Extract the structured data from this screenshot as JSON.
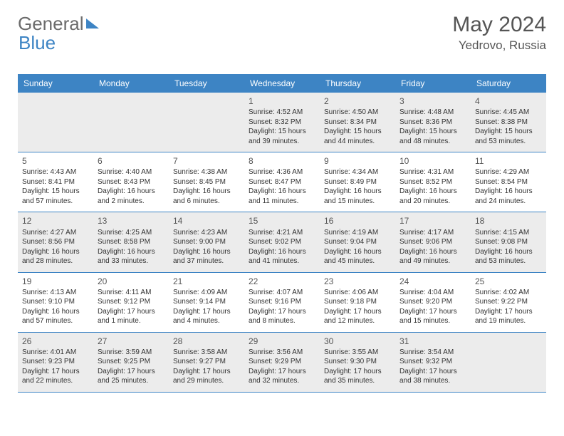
{
  "logo": {
    "text1": "General",
    "text2": "Blue"
  },
  "title": "May 2024",
  "location": "Yedrovo, Russia",
  "day_names": [
    "Sunday",
    "Monday",
    "Tuesday",
    "Wednesday",
    "Thursday",
    "Friday",
    "Saturday"
  ],
  "colors": {
    "header_bg": "#3d84c4",
    "shade": "#ececec",
    "text": "#333333",
    "title": "#555555"
  },
  "fonts": {
    "title_size": 30,
    "location_size": 17,
    "dayheader_size": 12,
    "cell_size": 10
  },
  "weeks": [
    [
      {
        "n": "",
        "sunrise": "",
        "sunset": "",
        "daylight": ""
      },
      {
        "n": "",
        "sunrise": "",
        "sunset": "",
        "daylight": ""
      },
      {
        "n": "",
        "sunrise": "",
        "sunset": "",
        "daylight": ""
      },
      {
        "n": "1",
        "sunrise": "Sunrise: 4:52 AM",
        "sunset": "Sunset: 8:32 PM",
        "daylight": "Daylight: 15 hours and 39 minutes."
      },
      {
        "n": "2",
        "sunrise": "Sunrise: 4:50 AM",
        "sunset": "Sunset: 8:34 PM",
        "daylight": "Daylight: 15 hours and 44 minutes."
      },
      {
        "n": "3",
        "sunrise": "Sunrise: 4:48 AM",
        "sunset": "Sunset: 8:36 PM",
        "daylight": "Daylight: 15 hours and 48 minutes."
      },
      {
        "n": "4",
        "sunrise": "Sunrise: 4:45 AM",
        "sunset": "Sunset: 8:38 PM",
        "daylight": "Daylight: 15 hours and 53 minutes."
      }
    ],
    [
      {
        "n": "5",
        "sunrise": "Sunrise: 4:43 AM",
        "sunset": "Sunset: 8:41 PM",
        "daylight": "Daylight: 15 hours and 57 minutes."
      },
      {
        "n": "6",
        "sunrise": "Sunrise: 4:40 AM",
        "sunset": "Sunset: 8:43 PM",
        "daylight": "Daylight: 16 hours and 2 minutes."
      },
      {
        "n": "7",
        "sunrise": "Sunrise: 4:38 AM",
        "sunset": "Sunset: 8:45 PM",
        "daylight": "Daylight: 16 hours and 6 minutes."
      },
      {
        "n": "8",
        "sunrise": "Sunrise: 4:36 AM",
        "sunset": "Sunset: 8:47 PM",
        "daylight": "Daylight: 16 hours and 11 minutes."
      },
      {
        "n": "9",
        "sunrise": "Sunrise: 4:34 AM",
        "sunset": "Sunset: 8:49 PM",
        "daylight": "Daylight: 16 hours and 15 minutes."
      },
      {
        "n": "10",
        "sunrise": "Sunrise: 4:31 AM",
        "sunset": "Sunset: 8:52 PM",
        "daylight": "Daylight: 16 hours and 20 minutes."
      },
      {
        "n": "11",
        "sunrise": "Sunrise: 4:29 AM",
        "sunset": "Sunset: 8:54 PM",
        "daylight": "Daylight: 16 hours and 24 minutes."
      }
    ],
    [
      {
        "n": "12",
        "sunrise": "Sunrise: 4:27 AM",
        "sunset": "Sunset: 8:56 PM",
        "daylight": "Daylight: 16 hours and 28 minutes."
      },
      {
        "n": "13",
        "sunrise": "Sunrise: 4:25 AM",
        "sunset": "Sunset: 8:58 PM",
        "daylight": "Daylight: 16 hours and 33 minutes."
      },
      {
        "n": "14",
        "sunrise": "Sunrise: 4:23 AM",
        "sunset": "Sunset: 9:00 PM",
        "daylight": "Daylight: 16 hours and 37 minutes."
      },
      {
        "n": "15",
        "sunrise": "Sunrise: 4:21 AM",
        "sunset": "Sunset: 9:02 PM",
        "daylight": "Daylight: 16 hours and 41 minutes."
      },
      {
        "n": "16",
        "sunrise": "Sunrise: 4:19 AM",
        "sunset": "Sunset: 9:04 PM",
        "daylight": "Daylight: 16 hours and 45 minutes."
      },
      {
        "n": "17",
        "sunrise": "Sunrise: 4:17 AM",
        "sunset": "Sunset: 9:06 PM",
        "daylight": "Daylight: 16 hours and 49 minutes."
      },
      {
        "n": "18",
        "sunrise": "Sunrise: 4:15 AM",
        "sunset": "Sunset: 9:08 PM",
        "daylight": "Daylight: 16 hours and 53 minutes."
      }
    ],
    [
      {
        "n": "19",
        "sunrise": "Sunrise: 4:13 AM",
        "sunset": "Sunset: 9:10 PM",
        "daylight": "Daylight: 16 hours and 57 minutes."
      },
      {
        "n": "20",
        "sunrise": "Sunrise: 4:11 AM",
        "sunset": "Sunset: 9:12 PM",
        "daylight": "Daylight: 17 hours and 1 minute."
      },
      {
        "n": "21",
        "sunrise": "Sunrise: 4:09 AM",
        "sunset": "Sunset: 9:14 PM",
        "daylight": "Daylight: 17 hours and 4 minutes."
      },
      {
        "n": "22",
        "sunrise": "Sunrise: 4:07 AM",
        "sunset": "Sunset: 9:16 PM",
        "daylight": "Daylight: 17 hours and 8 minutes."
      },
      {
        "n": "23",
        "sunrise": "Sunrise: 4:06 AM",
        "sunset": "Sunset: 9:18 PM",
        "daylight": "Daylight: 17 hours and 12 minutes."
      },
      {
        "n": "24",
        "sunrise": "Sunrise: 4:04 AM",
        "sunset": "Sunset: 9:20 PM",
        "daylight": "Daylight: 17 hours and 15 minutes."
      },
      {
        "n": "25",
        "sunrise": "Sunrise: 4:02 AM",
        "sunset": "Sunset: 9:22 PM",
        "daylight": "Daylight: 17 hours and 19 minutes."
      }
    ],
    [
      {
        "n": "26",
        "sunrise": "Sunrise: 4:01 AM",
        "sunset": "Sunset: 9:23 PM",
        "daylight": "Daylight: 17 hours and 22 minutes."
      },
      {
        "n": "27",
        "sunrise": "Sunrise: 3:59 AM",
        "sunset": "Sunset: 9:25 PM",
        "daylight": "Daylight: 17 hours and 25 minutes."
      },
      {
        "n": "28",
        "sunrise": "Sunrise: 3:58 AM",
        "sunset": "Sunset: 9:27 PM",
        "daylight": "Daylight: 17 hours and 29 minutes."
      },
      {
        "n": "29",
        "sunrise": "Sunrise: 3:56 AM",
        "sunset": "Sunset: 9:29 PM",
        "daylight": "Daylight: 17 hours and 32 minutes."
      },
      {
        "n": "30",
        "sunrise": "Sunrise: 3:55 AM",
        "sunset": "Sunset: 9:30 PM",
        "daylight": "Daylight: 17 hours and 35 minutes."
      },
      {
        "n": "31",
        "sunrise": "Sunrise: 3:54 AM",
        "sunset": "Sunset: 9:32 PM",
        "daylight": "Daylight: 17 hours and 38 minutes."
      },
      {
        "n": "",
        "sunrise": "",
        "sunset": "",
        "daylight": ""
      }
    ]
  ]
}
